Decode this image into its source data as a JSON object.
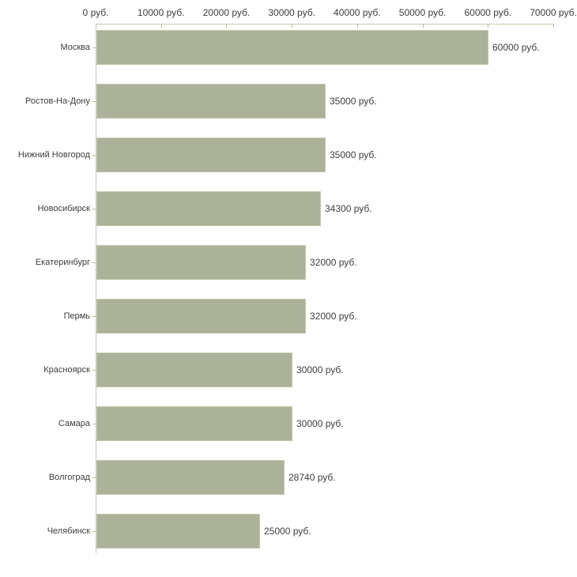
{
  "chart_data": {
    "type": "bar",
    "orientation": "horizontal",
    "categories": [
      "Москва",
      "Ростов-На-Дону",
      "Нижний Новгород",
      "Новосибирск",
      "Екатеринбург",
      "Пермь",
      "Красноярск",
      "Самара",
      "Волгоград",
      "Челябинск"
    ],
    "values": [
      60000,
      35000,
      35000,
      34300,
      32000,
      32000,
      30000,
      30000,
      28740,
      25000
    ],
    "bar_labels": [
      "60000 руб.",
      "35000 руб.",
      "35000 руб.",
      "34300 руб.",
      "32000 руб.",
      "32000 руб.",
      "30000 руб.",
      "30000 руб.",
      "28740 руб.",
      "25000 руб."
    ],
    "x_axis": {
      "position": "top",
      "range": [
        0,
        70000
      ],
      "ticks": [
        0,
        10000,
        20000,
        30000,
        40000,
        50000,
        60000,
        70000
      ],
      "tick_labels": [
        "0 руб.",
        "10000 руб.",
        "20000 руб.",
        "30000 руб.",
        "40000 руб.",
        "50000 руб.",
        "60000 руб.",
        "70000 руб."
      ]
    },
    "grid": false,
    "colors": {
      "bar_fill": "#acb299",
      "bar_border": "#c4c9ad",
      "x_axis_line": "#c9ccaa",
      "tick_marks": "#b9bd98",
      "y_axis_line": "#c6c6c6",
      "label_text": "#3d3d3d"
    }
  }
}
